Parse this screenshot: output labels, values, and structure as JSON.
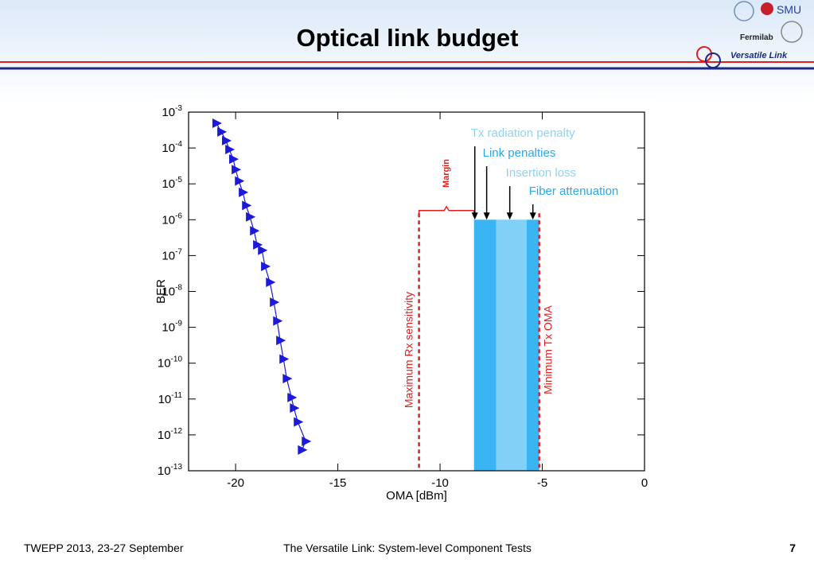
{
  "header": {
    "title": "Optical link budget",
    "logos": [
      "SMU",
      "Fermilab",
      "Versatile Link"
    ]
  },
  "footer": {
    "left": "TWEPP 2013, 23-27 September",
    "center": "The Versatile Link: System-level Component Tests",
    "page": 7
  },
  "chart_data": {
    "type": "line",
    "log_y": true,
    "x_label": "OMA [dBm]",
    "y_label": "BER",
    "xlim": [
      -22.3,
      0
    ],
    "xticks": [
      -20,
      -15,
      -10,
      -5,
      0
    ],
    "ylim": [
      1e-13,
      0.001
    ],
    "yticks": [
      {
        "value": 0.001,
        "label": "10",
        "exponent": "-3"
      },
      {
        "value": 0.0001,
        "label": "10",
        "exponent": "-4"
      },
      {
        "value": 1e-05,
        "label": "10",
        "exponent": "-5"
      },
      {
        "value": 1e-06,
        "label": "10",
        "exponent": "-6"
      },
      {
        "value": 1e-07,
        "label": "10",
        "exponent": "-7"
      },
      {
        "value": 1e-08,
        "label": "10",
        "exponent": "-8"
      },
      {
        "value": 1e-09,
        "label": "10",
        "exponent": "-9"
      },
      {
        "value": 1e-10,
        "label": "10",
        "exponent": "-10"
      },
      {
        "value": 1e-11,
        "label": "10",
        "exponent": "-11"
      },
      {
        "value": 1e-12,
        "label": "10",
        "exponent": "-12"
      },
      {
        "value": 1e-13,
        "label": "10",
        "exponent": "-13"
      }
    ],
    "x": [
      -20.94,
      -20.7,
      -20.47,
      -20.31,
      -20.12,
      -20.0,
      -19.84,
      -19.65,
      -19.49,
      -19.3,
      -19.1,
      -18.95,
      -18.71,
      -18.56,
      -18.32,
      -18.13,
      -17.97,
      -17.82,
      -17.66,
      -17.5,
      -17.27,
      -17.15,
      -16.96,
      -16.57,
      -16.76
    ],
    "series": [
      {
        "color": "#1a1ad8",
        "values": [
          0.00049,
          0.00028,
          0.00016,
          9.1e-05,
          4.9e-05,
          2.5e-05,
          1.2e-05,
          5.8e-06,
          2.5e-06,
          1.2e-06,
          4.9e-07,
          2e-07,
          1.4e-07,
          5e-08,
          1.8e-08,
          5e-09,
          1.5e-09,
          4.3e-10,
          1.3e-10,
          3.7e-11,
          1.1e-11,
          5.6e-12,
          2.3e-12,
          6.6e-13,
          3.8e-13
        ]
      }
    ],
    "regions": [
      {
        "x0": -8.34,
        "x1": -7.25,
        "y_top": 1e-06,
        "color": "#3ab4f2"
      },
      {
        "x0": -7.25,
        "x1": -5.77,
        "y_top": 1e-06,
        "color": "#80d0f8"
      },
      {
        "x0": -5.77,
        "x1": -5.15,
        "y_top": 1e-06,
        "color": "#3ab4f2"
      }
    ],
    "vlines": [
      {
        "x": -11.03,
        "label": "Maximum Rx sensitivity",
        "color": "#e02020"
      },
      {
        "x": -5.15,
        "label": "Minimum Tx OMA",
        "color": "#e02020"
      }
    ],
    "arrows": [
      {
        "x": -8.3,
        "y": 1e-06,
        "label": "Tx radiation penalty",
        "color": "#8fd3f5"
      },
      {
        "x": -7.72,
        "y": 1e-06,
        "label": "Link penalties",
        "color": "#2aa8e8"
      },
      {
        "x": -6.59,
        "y": 1e-06,
        "label": "Insertion loss",
        "color": "#8fd3f5"
      },
      {
        "x": -5.46,
        "y": 1e-06,
        "label": "Fiber attenuation",
        "color": "#2aa8e8"
      }
    ],
    "margin": {
      "label": "Margin",
      "x0": -11.03,
      "x1": -8.34,
      "y": 1.8e-06,
      "color": "#e02020"
    }
  }
}
